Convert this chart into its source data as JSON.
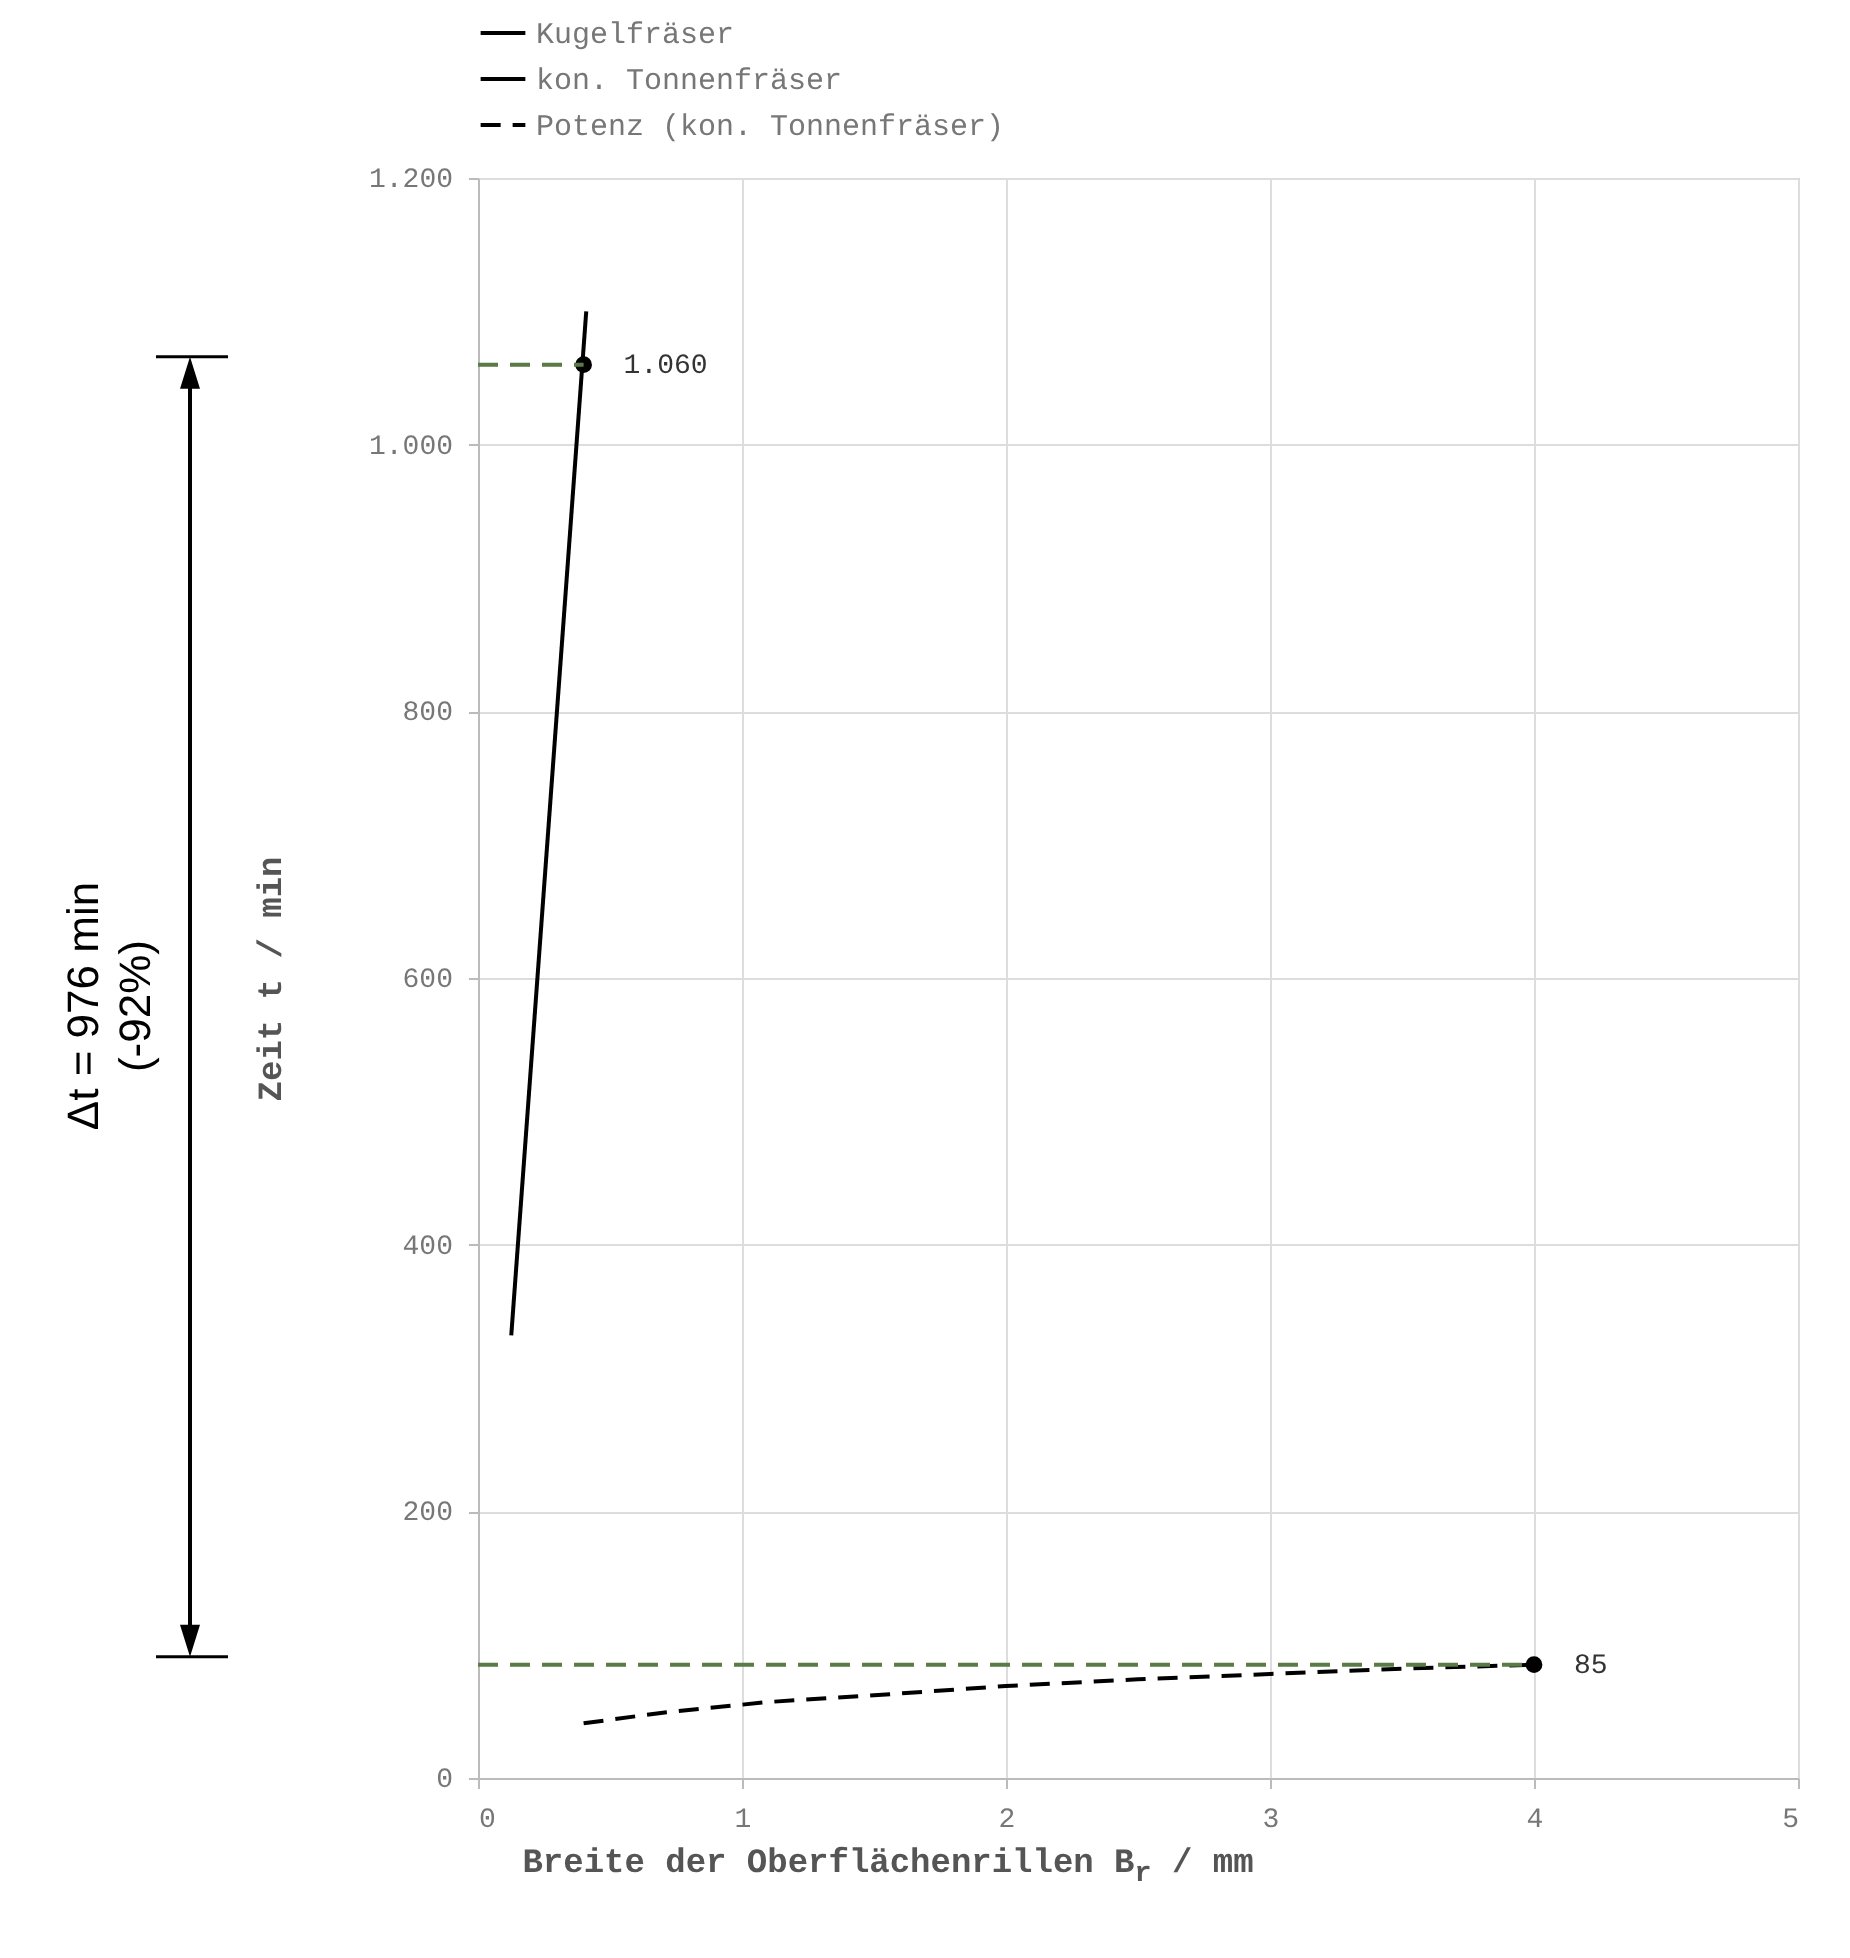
{
  "chart_data": {
    "type": "line",
    "xlabel": "Breite der Oberflächenrillen B$_{r}$ / mm",
    "ylabel": "Zeit t / min",
    "xlim": [
      0,
      5
    ],
    "xticks": [
      0,
      1,
      2,
      3,
      4,
      5
    ],
    "ylim": [
      0,
      1200
    ],
    "yticks": [
      0,
      200,
      400,
      600,
      800,
      {
        "value": 1000,
        "label": "1.000"
      },
      {
        "value": 1200,
        "label": "1.200"
      }
    ],
    "grid": true,
    "legend": "top",
    "series": [
      {
        "name": "Kugelfräser",
        "type": "line",
        "color": "#000000",
        "line_style": "solid",
        "x": [
          0.126,
          0.41
        ],
        "values": [
          332,
          1100
        ]
      },
      {
        "name": "kon. Tonnenfräser",
        "type": "scatter",
        "marker": "circle",
        "color": "#000000",
        "x": [
          0.4,
          4
        ],
        "values": [
          1060,
          85
        ],
        "value_labels": [
          "1.060",
          "85"
        ]
      },
      {
        "name": "Potenz (kon. Tonnenfräser)",
        "type": "line",
        "color": "#000000",
        "line_style": "dashed",
        "x": [
          0.4,
          0.7,
          1.1,
          1.5,
          2,
          2.5,
          3,
          3.5,
          4
        ],
        "values": [
          41,
          49,
          57,
          62,
          69,
          74,
          78,
          82,
          85
        ]
      },
      {
        "type": "line",
        "color": "#5a7a46",
        "line_style": "dashed",
        "x": [
          0,
          0.4
        ],
        "values": [
          1060,
          1060
        ]
      },
      {
        "type": "line",
        "color": "#5a7a46",
        "line_style": "dashed",
        "x": [
          0,
          4
        ],
        "values": [
          85,
          85
        ]
      }
    ],
    "annotations": [
      "Δt = 976 min (-92%)"
    ]
  }
}
